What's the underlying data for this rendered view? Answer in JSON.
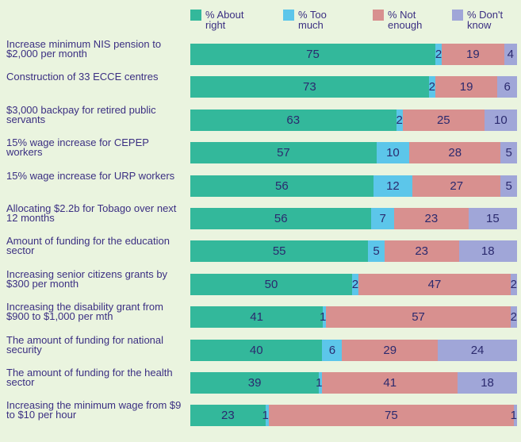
{
  "chart_data": {
    "type": "stacked-bar-horizontal",
    "categories": [
      "Increase minimum NIS pension to $2,000 per month",
      "Construction of 33 ECCE centres",
      "$3,000 backpay for retired public servants",
      "15% wage increase for CEPEP workers",
      "15% wage increase for URP workers",
      "Allocating $2.2b for Tobago over next 12 months",
      "Amount of funding for the education sector",
      "Increasing senior citizens grants by $300 per month",
      "Increasing the disability grant from $900 to $1,000 per mth",
      "The amount of funding for national security",
      "The amount of funding for the health sector",
      "Increasing the minimum wage from $9 to $10 per hour"
    ],
    "series": [
      {
        "name": "% About right",
        "color": "#33b89b",
        "values": [
          75,
          73,
          63,
          57,
          56,
          56,
          55,
          50,
          41,
          40,
          39,
          23
        ]
      },
      {
        "name": "% Too much",
        "color": "#5cc6ea",
        "values": [
          2,
          2,
          2,
          10,
          12,
          7,
          5,
          2,
          1,
          6,
          1,
          1
        ]
      },
      {
        "name": "% Not enough",
        "color": "#d8908f",
        "values": [
          19,
          19,
          25,
          28,
          27,
          23,
          23,
          47,
          57,
          29,
          41,
          75
        ]
      },
      {
        "name": "% Don't know",
        "color": "#a0a6d8",
        "values": [
          4,
          6,
          10,
          5,
          5,
          15,
          18,
          2,
          2,
          24,
          18,
          1
        ]
      }
    ]
  }
}
